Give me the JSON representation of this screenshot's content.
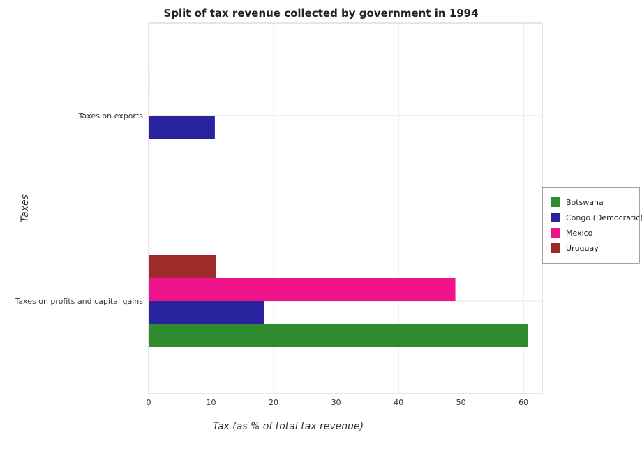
{
  "chart_data": {
    "type": "bar",
    "orientation": "horizontal",
    "title": "Split of tax revenue collected by government in 1994",
    "xlabel": "Tax (as % of total tax revenue)",
    "ylabel": "Taxes",
    "xlim": [
      0,
      63
    ],
    "xticks": [
      0,
      10,
      20,
      30,
      40,
      50,
      60
    ],
    "grid": true,
    "legend_position": "right",
    "categories": [
      "Taxes on exports",
      "Taxes on profits and capital gains"
    ],
    "series": [
      {
        "name": "Botswana",
        "color": "#2e8b2e",
        "values": [
          0.0,
          60.7
        ]
      },
      {
        "name": "Congo (Democratic)",
        "color": "#2a23a0",
        "values": [
          10.6,
          18.5
        ]
      },
      {
        "name": "Mexico",
        "color": "#f0148c",
        "values": [
          0.02,
          49.1
        ]
      },
      {
        "name": "Uruguay",
        "color": "#9e2a2a",
        "values": [
          0.12,
          10.75
        ]
      }
    ]
  }
}
